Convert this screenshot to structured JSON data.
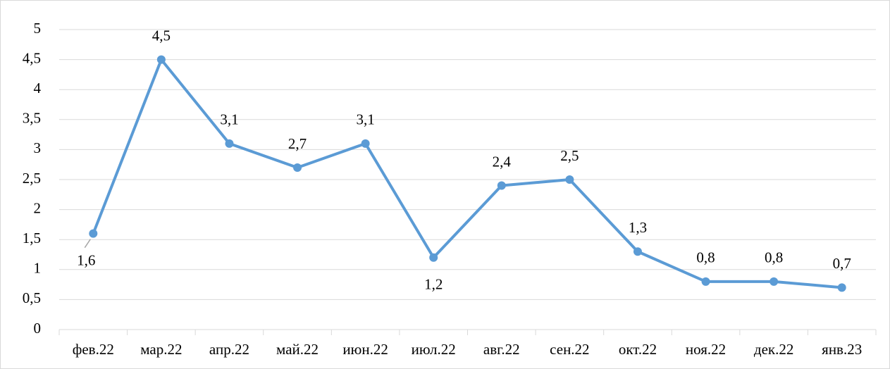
{
  "chart_data": {
    "type": "line",
    "categories": [
      "фев.22",
      "мар.22",
      "апр.22",
      "май.22",
      "июн.22",
      "июл.22",
      "авг.22",
      "сен.22",
      "окт.22",
      "ноя.22",
      "дек.22",
      "янв.23"
    ],
    "series": [
      {
        "color": "#5b9bd5",
        "values": [
          1.6,
          4.5,
          3.1,
          2.7,
          3.1,
          1.2,
          2.4,
          2.5,
          1.3,
          0.8,
          0.8,
          0.7
        ],
        "value_labels": [
          "1,6",
          "4,5",
          "3,1",
          "2,7",
          "3,1",
          "1,2",
          "2,4",
          "2,5",
          "1,3",
          "0,8",
          "0,8",
          "0,7"
        ]
      }
    ],
    "ylim": [
      0,
      5
    ],
    "yticks": [
      0,
      {
        "value": 0.5,
        "label": "0,5"
      },
      1,
      {
        "value": 1.5,
        "label": "1,5"
      },
      2,
      {
        "value": 2.5,
        "label": "2,5"
      },
      3,
      {
        "value": 3.5,
        "label": "3,5"
      },
      4,
      {
        "value": 4.5,
        "label": "4,5"
      },
      5
    ],
    "grid": true
  }
}
